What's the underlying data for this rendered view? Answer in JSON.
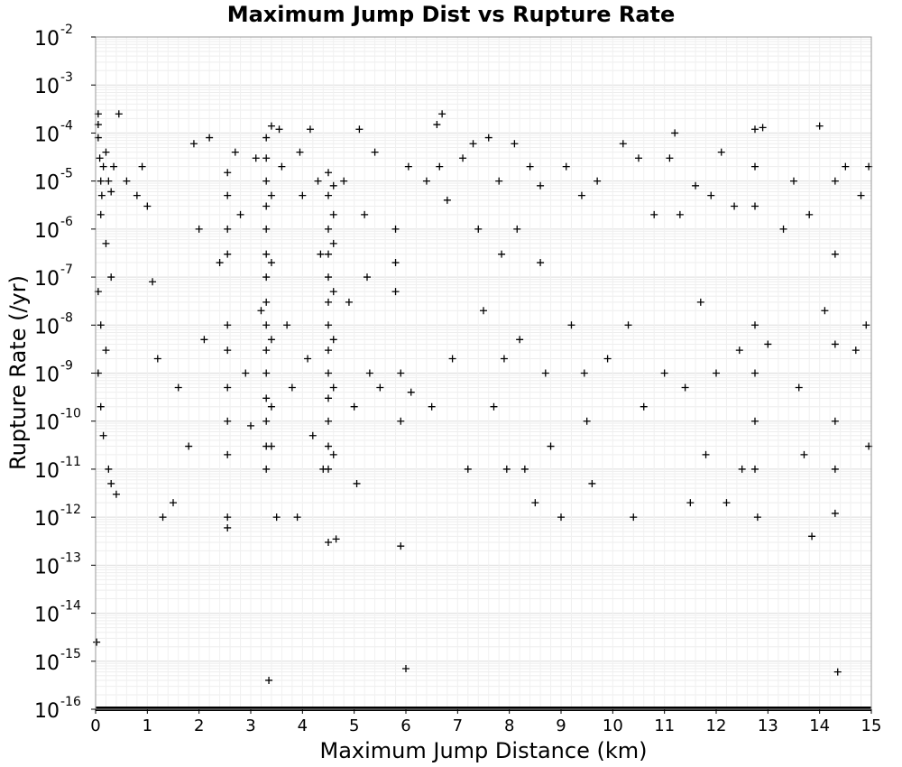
{
  "chart_data": {
    "type": "scatter",
    "title": "Maximum Jump Dist vs Rupture Rate",
    "xlabel": "Maximum Jump Distance (km)",
    "ylabel": "Rupture Rate (/yr)",
    "xlim": [
      0,
      15
    ],
    "ylim_exponent": [
      -16,
      -2
    ],
    "y_scale": "log",
    "grid": true,
    "marker": "plus",
    "marker_color": "#000000",
    "x_ticks": [
      {
        "value": 0,
        "label": "0"
      },
      {
        "value": 1,
        "label": "1"
      },
      {
        "value": 2,
        "label": "2"
      },
      {
        "value": 3,
        "label": "3"
      },
      {
        "value": 4,
        "label": "4"
      },
      {
        "value": 5,
        "label": "5"
      },
      {
        "value": 6,
        "label": "6"
      },
      {
        "value": 7,
        "label": "7"
      },
      {
        "value": 8,
        "label": "8"
      },
      {
        "value": 9,
        "label": "9"
      },
      {
        "value": 10,
        "label": "10"
      },
      {
        "value": 11,
        "label": "11"
      },
      {
        "value": 12,
        "label": "12"
      },
      {
        "value": 13,
        "label": "13"
      },
      {
        "value": 14,
        "label": "14"
      },
      {
        "value": 15,
        "label": "15"
      }
    ],
    "y_ticks": [
      {
        "exp": -2,
        "base": "10",
        "sup": "-2"
      },
      {
        "exp": -3,
        "base": "10",
        "sup": "-3"
      },
      {
        "exp": -4,
        "base": "10",
        "sup": "-4"
      },
      {
        "exp": -5,
        "base": "10",
        "sup": "-5"
      },
      {
        "exp": -6,
        "base": "10",
        "sup": "-6"
      },
      {
        "exp": -7,
        "base": "10",
        "sup": "-7"
      },
      {
        "exp": -8,
        "base": "10",
        "sup": "-8"
      },
      {
        "exp": -9,
        "base": "10",
        "sup": "-9"
      },
      {
        "exp": -10,
        "base": "10",
        "sup": "-10"
      },
      {
        "exp": -11,
        "base": "10",
        "sup": "-11"
      },
      {
        "exp": -12,
        "base": "10",
        "sup": "-12"
      },
      {
        "exp": -13,
        "base": "10",
        "sup": "-13"
      },
      {
        "exp": -14,
        "base": "10",
        "sup": "-14"
      },
      {
        "exp": -15,
        "base": "10",
        "sup": "-15"
      },
      {
        "exp": -16,
        "base": "10",
        "sup": "-16"
      }
    ],
    "points": [
      [
        0.05,
        0.00015
      ],
      [
        0.05,
        8e-05
      ],
      [
        0.08,
        3e-05
      ],
      [
        0.1,
        1e-05
      ],
      [
        0.12,
        5e-06
      ],
      [
        0.15,
        2e-05
      ],
      [
        0.2,
        4e-05
      ],
      [
        0.25,
        1e-05
      ],
      [
        0.3,
        6e-06
      ],
      [
        0.35,
        2e-05
      ],
      [
        0.05,
        0.00025
      ],
      [
        0.1,
        2e-06
      ],
      [
        0.2,
        5e-07
      ],
      [
        0.3,
        1e-07
      ],
      [
        0.05,
        5e-08
      ],
      [
        0.1,
        1e-08
      ],
      [
        0.2,
        3e-09
      ],
      [
        0.05,
        1e-09
      ],
      [
        0.1,
        2e-10
      ],
      [
        0.15,
        5e-11
      ],
      [
        0.25,
        1e-11
      ],
      [
        0.3,
        5e-12
      ],
      [
        0.4,
        3e-12
      ],
      [
        0.45,
        0.00025
      ],
      [
        0.6,
        1e-05
      ],
      [
        0.8,
        5e-06
      ],
      [
        0.9,
        2e-05
      ],
      [
        1.0,
        3e-06
      ],
      [
        1.1,
        8e-08
      ],
      [
        1.2,
        2e-09
      ],
      [
        1.3,
        1e-12
      ],
      [
        1.5,
        2e-12
      ],
      [
        1.6,
        5e-10
      ],
      [
        1.8,
        3e-11
      ],
      [
        1.9,
        6e-05
      ],
      [
        2.0,
        1e-06
      ],
      [
        2.1,
        5e-09
      ],
      [
        2.2,
        8e-05
      ],
      [
        2.4,
        2e-07
      ],
      [
        2.55,
        1.5e-05
      ],
      [
        2.55,
        5e-06
      ],
      [
        2.55,
        1e-06
      ],
      [
        2.55,
        3e-07
      ],
      [
        2.55,
        1e-08
      ],
      [
        2.55,
        3e-09
      ],
      [
        2.55,
        5e-10
      ],
      [
        2.55,
        1e-10
      ],
      [
        2.55,
        2e-11
      ],
      [
        2.55,
        1e-12
      ],
      [
        2.55,
        6e-13
      ],
      [
        2.7,
        4e-05
      ],
      [
        2.8,
        2e-06
      ],
      [
        2.9,
        1e-09
      ],
      [
        3.0,
        8e-11
      ],
      [
        3.1,
        3e-05
      ],
      [
        3.2,
        2e-08
      ],
      [
        3.3,
        8e-05
      ],
      [
        3.3,
        3e-05
      ],
      [
        3.3,
        1e-05
      ],
      [
        3.3,
        3e-06
      ],
      [
        3.3,
        1e-06
      ],
      [
        3.3,
        3e-07
      ],
      [
        3.3,
        1e-07
      ],
      [
        3.3,
        3e-08
      ],
      [
        3.3,
        1e-08
      ],
      [
        3.3,
        3e-09
      ],
      [
        3.3,
        1e-09
      ],
      [
        3.3,
        3e-10
      ],
      [
        3.3,
        1e-10
      ],
      [
        3.3,
        3e-11
      ],
      [
        3.3,
        1e-11
      ],
      [
        3.35,
        4e-16
      ],
      [
        3.4,
        0.00014
      ],
      [
        3.4,
        5e-06
      ],
      [
        3.4,
        2e-07
      ],
      [
        3.4,
        5e-09
      ],
      [
        3.4,
        2e-10
      ],
      [
        3.4,
        3e-11
      ],
      [
        3.5,
        1e-12
      ],
      [
        3.55,
        0.00012
      ],
      [
        3.6,
        2e-05
      ],
      [
        3.7,
        1e-08
      ],
      [
        3.8,
        5e-10
      ],
      [
        3.9,
        1e-12
      ],
      [
        3.95,
        4e-05
      ],
      [
        4.0,
        5e-06
      ],
      [
        4.1,
        2e-09
      ],
      [
        4.15,
        0.00012
      ],
      [
        4.2,
        5e-11
      ],
      [
        4.3,
        1e-05
      ],
      [
        4.35,
        3e-07
      ],
      [
        4.4,
        1e-11
      ],
      [
        4.5,
        1.5e-05
      ],
      [
        4.5,
        5e-06
      ],
      [
        4.5,
        1e-06
      ],
      [
        4.5,
        3e-07
      ],
      [
        4.5,
        1e-07
      ],
      [
        4.5,
        3e-08
      ],
      [
        4.5,
        1e-08
      ],
      [
        4.5,
        3e-09
      ],
      [
        4.5,
        1e-09
      ],
      [
        4.5,
        3e-10
      ],
      [
        4.5,
        1e-10
      ],
      [
        4.5,
        3e-11
      ],
      [
        4.5,
        1e-11
      ],
      [
        4.5,
        3e-13
      ],
      [
        4.6,
        8e-06
      ],
      [
        4.6,
        2e-06
      ],
      [
        4.6,
        5e-07
      ],
      [
        4.6,
        5e-08
      ],
      [
        4.6,
        5e-09
      ],
      [
        4.6,
        5e-10
      ],
      [
        4.6,
        2e-11
      ],
      [
        4.65,
        3.5e-13
      ],
      [
        4.8,
        1e-05
      ],
      [
        4.9,
        3e-08
      ],
      [
        5.0,
        2e-10
      ],
      [
        5.05,
        5e-12
      ],
      [
        5.1,
        0.00012
      ],
      [
        5.2,
        2e-06
      ],
      [
        5.25,
        1e-07
      ],
      [
        5.3,
        1e-09
      ],
      [
        5.4,
        4e-05
      ],
      [
        5.5,
        5e-10
      ],
      [
        5.8,
        1e-06
      ],
      [
        5.8,
        2e-07
      ],
      [
        5.8,
        5e-08
      ],
      [
        5.9,
        1e-09
      ],
      [
        5.9,
        1e-10
      ],
      [
        5.9,
        2.5e-13
      ],
      [
        6.0,
        7e-16
      ],
      [
        6.05,
        2e-05
      ],
      [
        6.1,
        4e-10
      ],
      [
        6.4,
        1e-05
      ],
      [
        6.5,
        2e-10
      ],
      [
        6.6,
        0.00015
      ],
      [
        6.65,
        2e-05
      ],
      [
        6.7,
        0.00025
      ],
      [
        6.8,
        4e-06
      ],
      [
        6.9,
        2e-09
      ],
      [
        7.1,
        3e-05
      ],
      [
        7.2,
        1e-11
      ],
      [
        7.3,
        6e-05
      ],
      [
        7.4,
        1e-06
      ],
      [
        7.5,
        2e-08
      ],
      [
        7.6,
        8e-05
      ],
      [
        7.7,
        2e-10
      ],
      [
        7.8,
        1e-05
      ],
      [
        7.85,
        3e-07
      ],
      [
        7.9,
        2e-09
      ],
      [
        7.95,
        1e-11
      ],
      [
        8.1,
        6e-05
      ],
      [
        8.15,
        1e-06
      ],
      [
        8.2,
        5e-09
      ],
      [
        8.3,
        1e-11
      ],
      [
        8.4,
        2e-05
      ],
      [
        8.5,
        2e-12
      ],
      [
        8.6,
        8e-06
      ],
      [
        8.6,
        2e-07
      ],
      [
        8.7,
        1e-09
      ],
      [
        8.8,
        3e-11
      ],
      [
        9.0,
        1e-12
      ],
      [
        9.1,
        2e-05
      ],
      [
        9.2,
        1e-08
      ],
      [
        9.4,
        5e-06
      ],
      [
        9.45,
        1e-09
      ],
      [
        9.5,
        1e-10
      ],
      [
        9.6,
        5e-12
      ],
      [
        9.7,
        1e-05
      ],
      [
        9.9,
        2e-09
      ],
      [
        10.2,
        6e-05
      ],
      [
        10.3,
        1e-08
      ],
      [
        10.4,
        1e-12
      ],
      [
        10.5,
        3e-05
      ],
      [
        10.6,
        2e-10
      ],
      [
        10.8,
        2e-06
      ],
      [
        11.0,
        1e-09
      ],
      [
        11.1,
        3e-05
      ],
      [
        11.2,
        0.0001
      ],
      [
        11.3,
        2e-06
      ],
      [
        11.4,
        5e-10
      ],
      [
        11.5,
        2e-12
      ],
      [
        11.6,
        8e-06
      ],
      [
        11.7,
        3e-08
      ],
      [
        11.8,
        2e-11
      ],
      [
        11.9,
        5e-06
      ],
      [
        12.0,
        1e-09
      ],
      [
        12.1,
        4e-05
      ],
      [
        12.2,
        2e-12
      ],
      [
        12.35,
        3e-06
      ],
      [
        12.45,
        3e-09
      ],
      [
        12.5,
        1e-11
      ],
      [
        12.75,
        0.00012
      ],
      [
        12.75,
        2e-05
      ],
      [
        12.75,
        3e-06
      ],
      [
        12.75,
        1e-08
      ],
      [
        12.75,
        1e-09
      ],
      [
        12.75,
        1e-10
      ],
      [
        12.75,
        1e-11
      ],
      [
        12.8,
        1e-12
      ],
      [
        12.9,
        0.00013
      ],
      [
        13.0,
        4e-09
      ],
      [
        13.3,
        1e-06
      ],
      [
        13.5,
        1e-05
      ],
      [
        13.6,
        5e-10
      ],
      [
        13.7,
        2e-11
      ],
      [
        13.8,
        2e-06
      ],
      [
        13.85,
        4e-13
      ],
      [
        14.0,
        0.00014
      ],
      [
        14.1,
        2e-08
      ],
      [
        14.3,
        1e-05
      ],
      [
        14.3,
        3e-07
      ],
      [
        14.3,
        4e-09
      ],
      [
        14.3,
        1e-10
      ],
      [
        14.3,
        1e-11
      ],
      [
        14.3,
        1.2e-12
      ],
      [
        14.35,
        6e-16
      ],
      [
        14.5,
        2e-05
      ],
      [
        14.7,
        3e-09
      ],
      [
        14.8,
        5e-06
      ],
      [
        14.9,
        1e-08
      ],
      [
        14.95,
        2e-05
      ],
      [
        14.95,
        3e-11
      ],
      [
        0.02,
        2.5e-15
      ]
    ],
    "floor_band_exp": -16
  }
}
